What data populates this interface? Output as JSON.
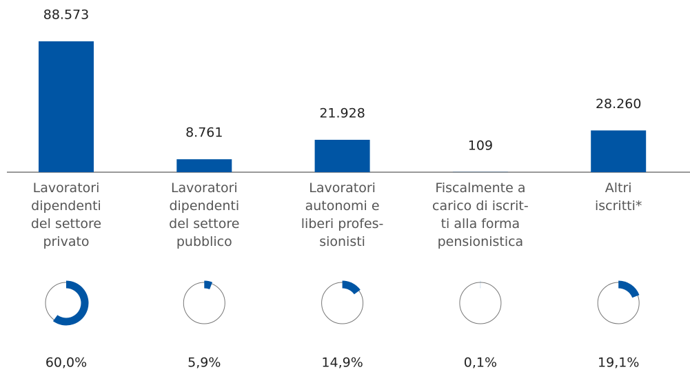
{
  "chart_data": {
    "type": "bar",
    "categories": [
      "Lavoratori\ndipendenti\ndel settore\nprivato",
      "Lavoratori\ndipendenti\ndel settore\npubblico",
      "Lavoratori\nautonomi e\nliberi profes-\nsionisti",
      "Fiscalmente a\ncarico di iscrit-\nti alla forma\npensionistica",
      "Altri\niscritti*"
    ],
    "values": [
      88573,
      8761,
      21928,
      109,
      28260
    ],
    "value_labels": [
      "88.573",
      "8.761",
      "21.928",
      "109",
      "28.260"
    ],
    "color": "#0055a4",
    "shares": {
      "type": "donut",
      "values": [
        60.0,
        5.9,
        14.9,
        0.1,
        19.1
      ],
      "value_labels": [
        "60,0%",
        "5,9%",
        "14,9%",
        "0,1%",
        "19,1%"
      ]
    }
  }
}
